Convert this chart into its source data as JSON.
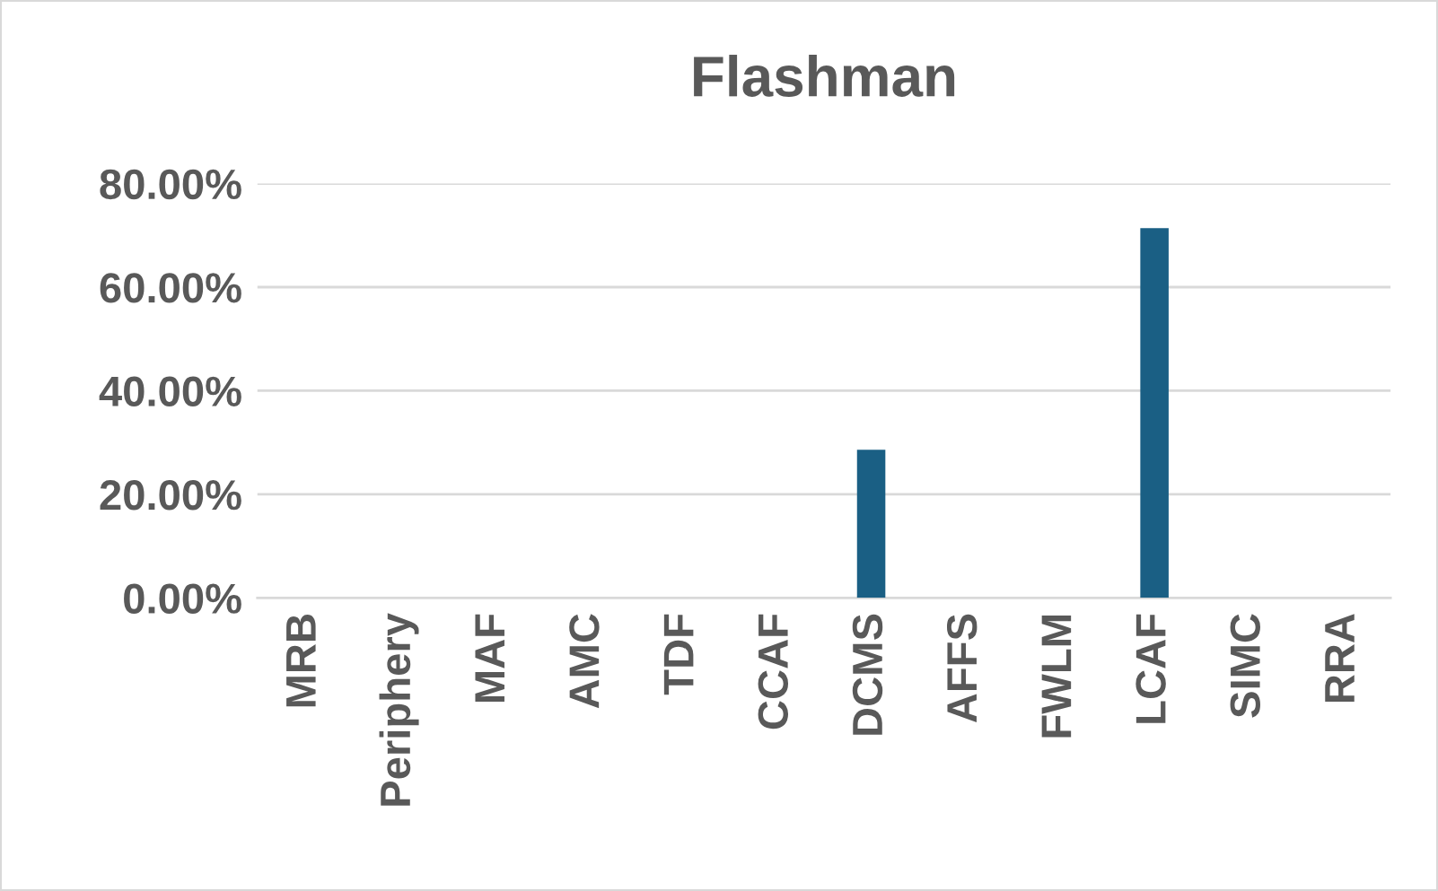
{
  "chart_data": {
    "type": "bar",
    "title": "Flashman",
    "categories": [
      "MRB",
      "Periphery",
      "MAF",
      "AMC",
      "TDF",
      "CCAF",
      "DCMS",
      "AFFS",
      "FWLM",
      "LCAF",
      "SIMC",
      "RRA"
    ],
    "values": [
      0,
      0,
      0,
      0,
      0,
      0,
      28.6,
      0,
      0,
      71.4,
      0,
      0
    ],
    "color": "#1a5f84",
    "ylim": [
      0,
      80
    ],
    "yticks": [
      {
        "value": 0,
        "label": "0.00%"
      },
      {
        "value": 20,
        "label": "20.00%"
      },
      {
        "value": 40,
        "label": "40.00%"
      },
      {
        "value": 60,
        "label": "60.00%"
      },
      {
        "value": 80,
        "label": "80.00%"
      }
    ],
    "grid": "y"
  }
}
